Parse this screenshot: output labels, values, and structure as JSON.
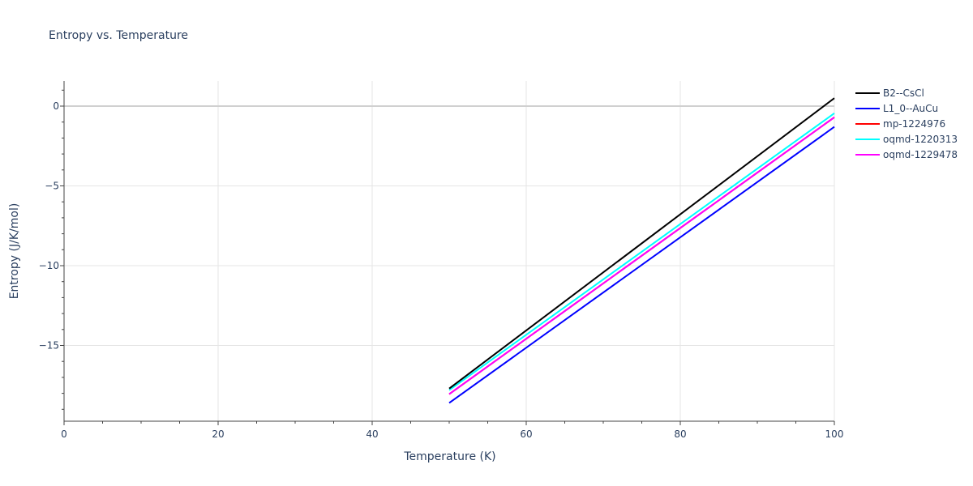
{
  "chart_data": {
    "type": "line",
    "title": "Entropy vs. Temperature",
    "xlabel": "Temperature (K)",
    "ylabel": "Entropy (J/K/mol)",
    "xlim": [
      0,
      100
    ],
    "ylim": [
      -19.7,
      1.6
    ],
    "x_ticks": [
      0,
      20,
      40,
      60,
      80,
      100
    ],
    "y_ticks": [
      0,
      -5,
      -10,
      -15
    ],
    "y_tick_labels": [
      "0",
      "−5",
      "−10",
      "−15"
    ],
    "grid": true,
    "legend_position": "right",
    "series": [
      {
        "name": "B2--CsCl",
        "color": "#000000",
        "x": [
          50,
          100
        ],
        "y": [
          -17.7,
          0.5
        ]
      },
      {
        "name": "L1_0--AuCu",
        "color": "#0000ff",
        "x": [
          50,
          100
        ],
        "y": [
          -18.6,
          -1.3
        ]
      },
      {
        "name": "mp-1224976",
        "color": "#ff0000",
        "x": [
          50,
          100
        ],
        "y": [
          -18.05,
          -0.7
        ]
      },
      {
        "name": "oqmd-1220313",
        "color": "#00ffff",
        "x": [
          50,
          100
        ],
        "y": [
          -17.8,
          -0.45
        ]
      },
      {
        "name": "oqmd-1229478",
        "color": "#ff00ff",
        "x": [
          50,
          100
        ],
        "y": [
          -18.05,
          -0.7
        ]
      }
    ]
  }
}
